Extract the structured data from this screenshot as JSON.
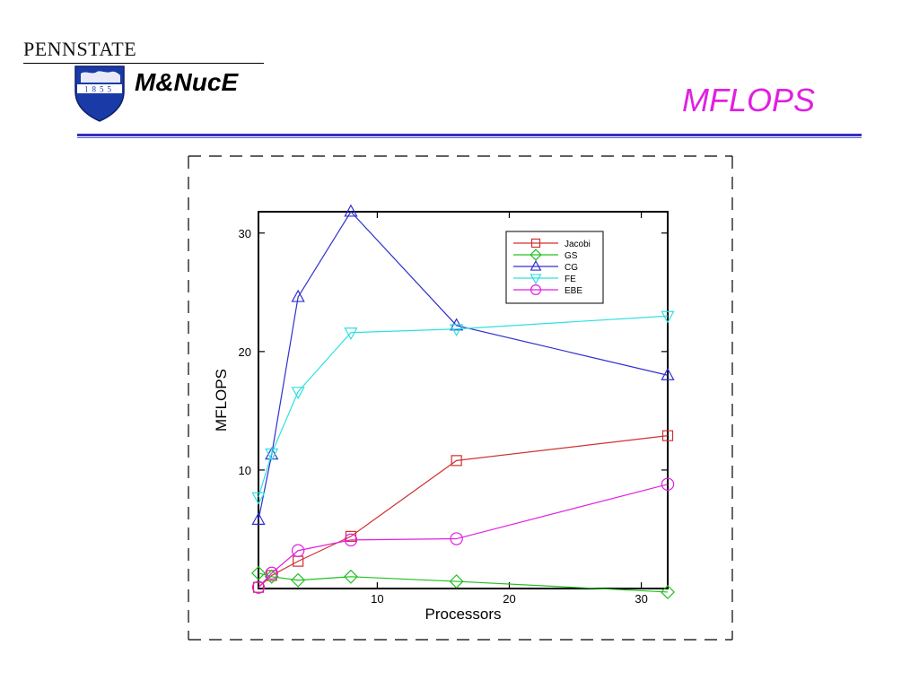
{
  "header": {
    "wordmark": "PENNSTATE",
    "shield_year": "1855",
    "department": "M&NucE",
    "slide_title": "MFLOPS"
  },
  "colors": {
    "accent_title": "#e020e0",
    "rule": "#3030c0",
    "shield_blue": "#1a3aa8"
  },
  "chart_data": {
    "type": "line",
    "title": "",
    "xlabel": "Processors",
    "ylabel": "MFLOPS",
    "xlim": [
      1,
      32
    ],
    "ylim": [
      0,
      31.8
    ],
    "x_ticks": [
      10,
      20,
      30
    ],
    "y_ticks": [
      10,
      20,
      30
    ],
    "legend_position": "top-right",
    "grid": false,
    "series": [
      {
        "name": "Jacobi",
        "color": "#d03030",
        "marker": "square",
        "x": [
          1,
          2,
          4,
          8,
          16,
          32
        ],
        "y": [
          0.1,
          1.1,
          2.3,
          4.4,
          10.8,
          12.9
        ]
      },
      {
        "name": "GS",
        "color": "#20c020",
        "marker": "diamond",
        "x": [
          1,
          2,
          4,
          8,
          16,
          32
        ],
        "y": [
          1.3,
          1.0,
          0.7,
          1.0,
          0.6,
          -0.3
        ]
      },
      {
        "name": "CG",
        "color": "#3030d0",
        "marker": "triangle-up",
        "x": [
          1,
          2,
          4,
          8,
          16,
          32
        ],
        "y": [
          5.8,
          11.3,
          24.6,
          31.8,
          22.2,
          18.0
        ]
      },
      {
        "name": "FE",
        "color": "#30e0e0",
        "marker": "triangle-down",
        "x": [
          1,
          2,
          4,
          8,
          16,
          32
        ],
        "y": [
          7.7,
          11.4,
          16.6,
          21.6,
          21.9,
          23.0
        ]
      },
      {
        "name": "EBE",
        "color": "#e020e0",
        "marker": "circle",
        "x": [
          1,
          2,
          4,
          8,
          16,
          32
        ],
        "y": [
          0.1,
          1.3,
          3.2,
          4.1,
          4.2,
          8.8
        ]
      }
    ]
  }
}
